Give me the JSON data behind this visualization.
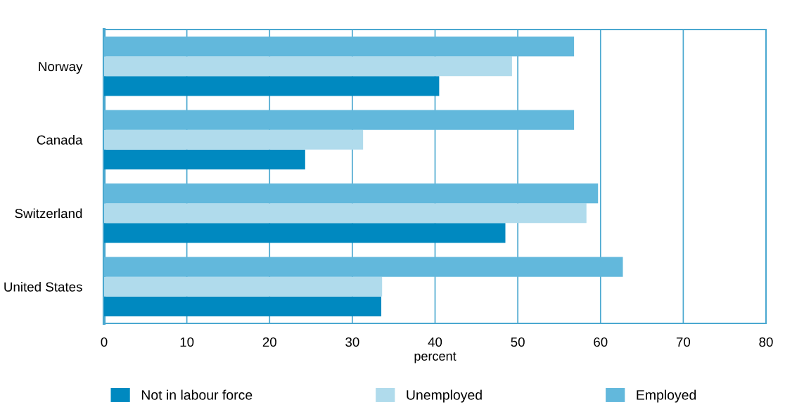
{
  "chart_data": {
    "type": "bar",
    "orientation": "horizontal",
    "xlabel": "percent",
    "categories": [
      "Norway",
      "Canada",
      "Switzerland",
      "United States"
    ],
    "series": [
      {
        "name": "Not in labour force",
        "color": "#0089c0",
        "values": [
          40.5,
          24.3,
          48.5,
          33.5
        ]
      },
      {
        "name": "Unemployed",
        "color": "#b0dbec",
        "values": [
          49.3,
          31.3,
          58.3,
          33.6
        ]
      },
      {
        "name": "Employed",
        "color": "#62b8dc",
        "values": [
          56.8,
          56.8,
          59.7,
          62.7
        ]
      }
    ],
    "xlim": [
      0,
      80
    ],
    "xticks": [
      0,
      10,
      20,
      30,
      40,
      50,
      60,
      70,
      80
    ],
    "grid": "x",
    "legend": "bottom"
  }
}
